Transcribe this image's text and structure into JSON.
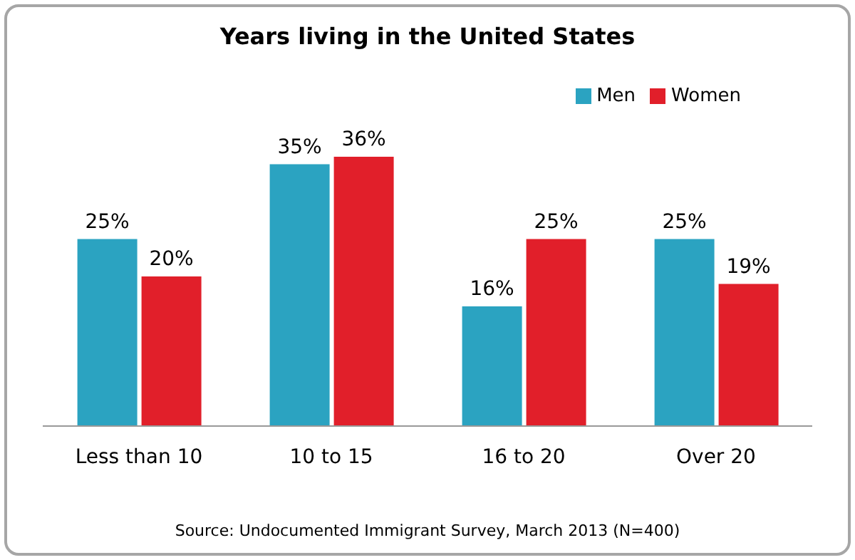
{
  "chart_data": {
    "type": "bar",
    "title": "Years living in the United States",
    "categories": [
      "Less than 10",
      "10 to 15",
      "16 to 20",
      "Over 20"
    ],
    "series": [
      {
        "name": "Men",
        "color": "#2ba3c1",
        "values": [
          25,
          35,
          16,
          25
        ],
        "value_labels": [
          "25%",
          "35%",
          "16%",
          "25%"
        ]
      },
      {
        "name": "Women",
        "color": "#e11f2a",
        "values": [
          20,
          36,
          25,
          19
        ],
        "value_labels": [
          "20%",
          "36%",
          "25%",
          "19%"
        ]
      }
    ],
    "legend": "top right",
    "tick_labels": "x",
    "annotations": [
      "Source: Undocumented Immigrant Survey, March 2013  (N=400)"
    ]
  }
}
